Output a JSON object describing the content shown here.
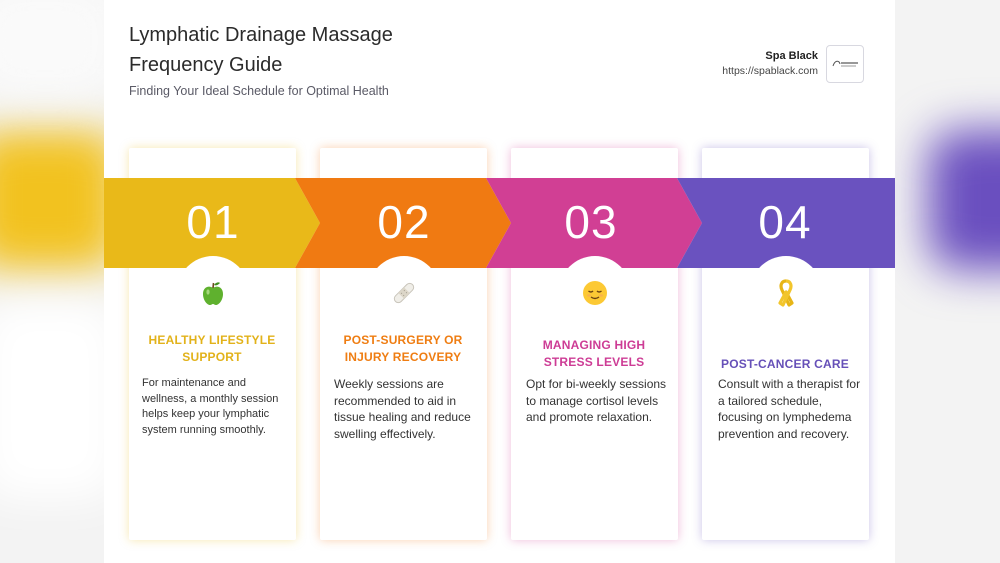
{
  "header": {
    "title": "Lymphatic Drainage Massage Frequency Guide",
    "subtitle": "Finding Your Ideal Schedule for Optimal Health"
  },
  "brand": {
    "name": "Spa Black",
    "url": "https://spablack.com"
  },
  "colors": {
    "step1": "#e9b919",
    "step2": "#f07a12",
    "step3": "#d13f94",
    "step4": "#6a52bf"
  },
  "cards": [
    {
      "number": "01",
      "icon": "green-apple-icon",
      "title": "Healthy Lifestyle Support",
      "body": "For maintenance and wellness, a monthly session helps keep your lymphatic system running smoothly."
    },
    {
      "number": "02",
      "icon": "bandage-icon",
      "title": "Post-Surgery or Injury Recovery",
      "body": "Weekly sessions are recommended to aid in tissue healing and reduce swelling effectively."
    },
    {
      "number": "03",
      "icon": "relieved-face-icon",
      "title": "Managing High Stress Levels",
      "body": "Opt for bi-weekly sessions to manage cortisol levels and promote relaxation."
    },
    {
      "number": "04",
      "icon": "awareness-ribbon-icon",
      "title": "Post-Cancer Care",
      "body": "Consult with a therapist for a tailored schedule, focusing on lymphedema prevention and recovery."
    }
  ]
}
